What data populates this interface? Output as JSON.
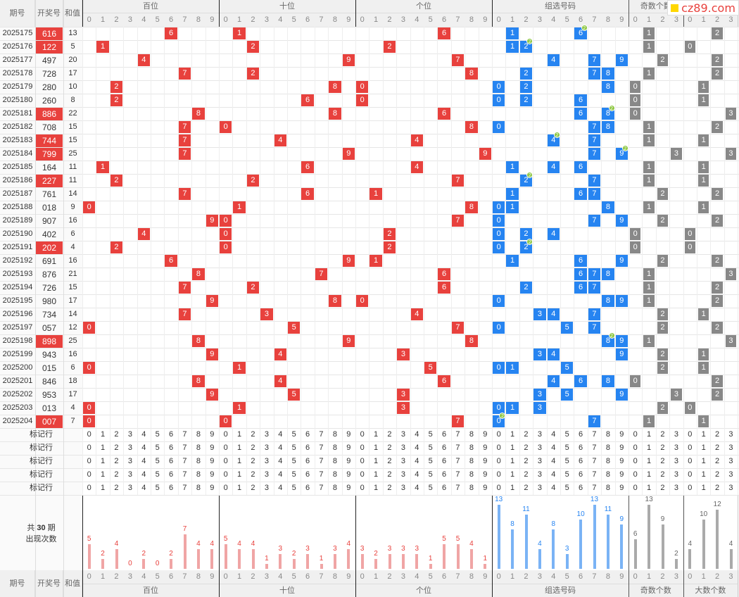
{
  "headers": {
    "period": "期号",
    "draw": "开奖号",
    "sum": "和值",
    "groups": [
      "百位",
      "十位",
      "个位",
      "组选号码",
      "奇数个数",
      "大数个数"
    ],
    "mark_row": "标记行",
    "summary_line1": "共",
    "summary_count": "30",
    "summary_line2": "期",
    "summary_line3": "出现次数"
  },
  "logo": "cz89.com",
  "colors": {
    "red": "#e8413d",
    "blue": "#2684f1",
    "gray": "#888888",
    "bar_red": "#f0a5a5",
    "bar_blue": "#7ab3f5",
    "bar_gray": "#aaaaaa"
  },
  "rows": [
    {
      "p": "2025175",
      "n": "616",
      "s": "13",
      "hl": true
    },
    {
      "p": "2025176",
      "n": "122",
      "s": "5",
      "hl": true
    },
    {
      "p": "2025177",
      "n": "497",
      "s": "20",
      "hl": false
    },
    {
      "p": "2025178",
      "n": "728",
      "s": "17",
      "hl": false
    },
    {
      "p": "2025179",
      "n": "280",
      "s": "10",
      "hl": false
    },
    {
      "p": "2025180",
      "n": "260",
      "s": "8",
      "hl": false
    },
    {
      "p": "2025181",
      "n": "886",
      "s": "22",
      "hl": true
    },
    {
      "p": "2025182",
      "n": "708",
      "s": "15",
      "hl": false
    },
    {
      "p": "2025183",
      "n": "744",
      "s": "15",
      "hl": true
    },
    {
      "p": "2025184",
      "n": "799",
      "s": "25",
      "hl": true
    },
    {
      "p": "2025185",
      "n": "164",
      "s": "11",
      "hl": false
    },
    {
      "p": "2025186",
      "n": "227",
      "s": "11",
      "hl": true
    },
    {
      "p": "2025187",
      "n": "761",
      "s": "14",
      "hl": false
    },
    {
      "p": "2025188",
      "n": "018",
      "s": "9",
      "hl": false
    },
    {
      "p": "2025189",
      "n": "907",
      "s": "16",
      "hl": false
    },
    {
      "p": "2025190",
      "n": "402",
      "s": "6",
      "hl": false
    },
    {
      "p": "2025191",
      "n": "202",
      "s": "4",
      "hl": true
    },
    {
      "p": "2025192",
      "n": "691",
      "s": "16",
      "hl": false
    },
    {
      "p": "2025193",
      "n": "876",
      "s": "21",
      "hl": false
    },
    {
      "p": "2025194",
      "n": "726",
      "s": "15",
      "hl": false
    },
    {
      "p": "2025195",
      "n": "980",
      "s": "17",
      "hl": false
    },
    {
      "p": "2025196",
      "n": "734",
      "s": "14",
      "hl": false
    },
    {
      "p": "2025197",
      "n": "057",
      "s": "12",
      "hl": false
    },
    {
      "p": "2025198",
      "n": "898",
      "s": "25",
      "hl": true
    },
    {
      "p": "2025199",
      "n": "943",
      "s": "16",
      "hl": false
    },
    {
      "p": "2025200",
      "n": "015",
      "s": "6",
      "hl": false
    },
    {
      "p": "2025201",
      "n": "846",
      "s": "18",
      "hl": false
    },
    {
      "p": "2025202",
      "n": "953",
      "s": "17",
      "hl": false
    },
    {
      "p": "2025203",
      "n": "013",
      "s": "4",
      "hl": false
    },
    {
      "p": "2025204",
      "n": "007",
      "s": "7",
      "hl": true
    }
  ],
  "counts": {
    "hundreds": [
      5,
      2,
      4,
      0,
      2,
      0,
      2,
      7,
      4,
      4
    ],
    "tens": [
      5,
      4,
      4,
      1,
      3,
      2,
      3,
      1,
      3,
      4
    ],
    "units": [
      3,
      2,
      3,
      3,
      3,
      1,
      5,
      5,
      4,
      1
    ],
    "group": [
      13,
      8,
      11,
      4,
      8,
      3,
      10,
      13,
      11,
      9
    ],
    "odd": [
      6,
      13,
      9,
      2
    ],
    "big": [
      4,
      10,
      12,
      4
    ]
  }
}
